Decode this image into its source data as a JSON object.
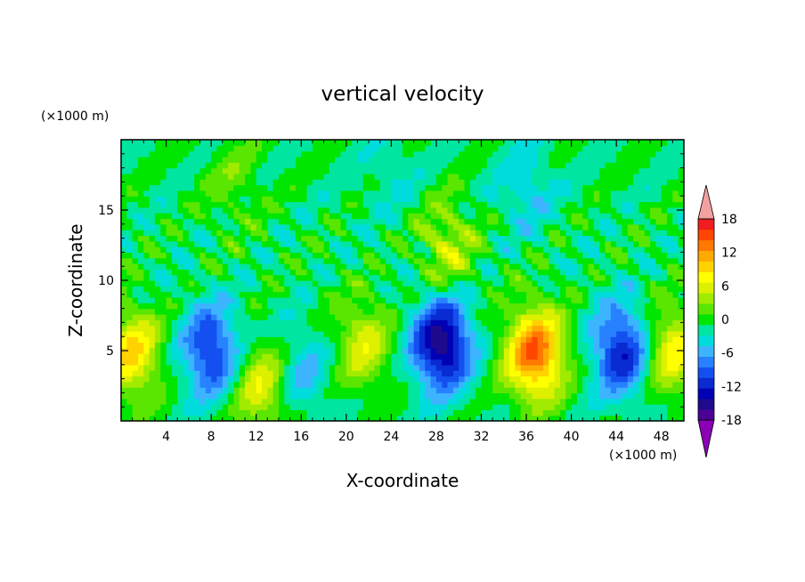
{
  "chart_data": {
    "type": "heatmap",
    "title": "vertical velocity",
    "xlabel": "X-coordinate",
    "ylabel": "Z-coordinate",
    "x_unit": "(×1000 m)",
    "y_unit": "(×1000 m)",
    "xlim": [
      0,
      50
    ],
    "ylim": [
      0,
      20
    ],
    "x_ticks": [
      4,
      8,
      12,
      16,
      20,
      24,
      28,
      32,
      36,
      40,
      44,
      48
    ],
    "y_ticks": [
      5,
      10,
      15
    ],
    "colorbar": {
      "levels": [
        -20,
        -18,
        -16,
        -14,
        -12,
        -10,
        -8,
        -6,
        -4,
        -2,
        0,
        2,
        4,
        6,
        8,
        10,
        12,
        14,
        16,
        18,
        20
      ],
      "tick_labels": [
        "18",
        "12",
        "6",
        "0",
        "-6",
        "-12",
        "-18"
      ],
      "tick_values": [
        18,
        12,
        6,
        0,
        -6,
        -12,
        -18
      ],
      "colors": [
        "#8b00b5",
        "#4b0096",
        "#1e0a8c",
        "#0000b4",
        "#0a2ad2",
        "#1450f0",
        "#2882ff",
        "#3cb4ff",
        "#00dcdc",
        "#00e6a0",
        "#00e600",
        "#5ae600",
        "#a0eb00",
        "#dcf000",
        "#ffff00",
        "#ffd200",
        "#ffaa00",
        "#ff7800",
        "#ff4600",
        "#f01e1e",
        "#f5a0a0"
      ],
      "extend": "both"
    },
    "features": [
      {
        "x": 1.0,
        "z": 4.8,
        "value": 10
      },
      {
        "x": 8.0,
        "z": 5.0,
        "value": -11
      },
      {
        "x": 12.5,
        "z": 2.5,
        "value": 8
      },
      {
        "x": 16.0,
        "z": 3.5,
        "value": -5
      },
      {
        "x": 21.5,
        "z": 5.5,
        "value": 7
      },
      {
        "x": 28.5,
        "z": 5.5,
        "value": -16
      },
      {
        "x": 29.0,
        "z": 12.5,
        "value": 6
      },
      {
        "x": 36.8,
        "z": 4.8,
        "value": 16
      },
      {
        "x": 44.5,
        "z": 5.0,
        "value": -12
      },
      {
        "x": 49.0,
        "z": 5.0,
        "value": 9
      },
      {
        "x": 10.0,
        "z": 17.0,
        "value": 3
      },
      {
        "x": 36.0,
        "z": 16.5,
        "value": -4
      },
      {
        "x": 24.0,
        "z": 17.5,
        "value": -2
      }
    ]
  }
}
